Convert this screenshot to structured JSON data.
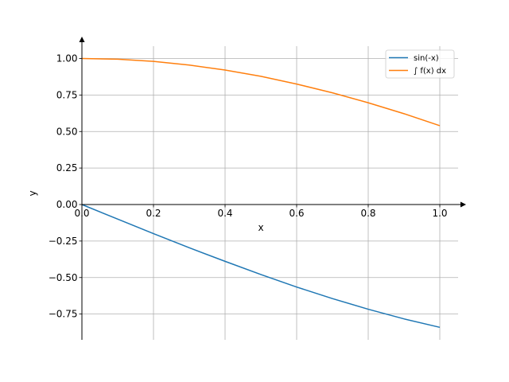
{
  "chart_data": {
    "type": "line",
    "title": "",
    "xlabel": "x",
    "ylabel": "y",
    "xlim": [
      0.0,
      1.05
    ],
    "ylim": [
      -0.93,
      1.09
    ],
    "xticks": [
      0.0,
      0.2,
      0.4,
      0.6,
      0.8,
      1.0
    ],
    "xtick_labels": [
      "0.0",
      "0.2",
      "0.4",
      "0.6",
      "0.8",
      "1.0"
    ],
    "yticks": [
      -0.75,
      -0.5,
      -0.25,
      0.0,
      0.25,
      0.5,
      0.75,
      1.0
    ],
    "ytick_labels": [
      "−0.75",
      "−0.50",
      "−0.25",
      "0.00",
      "0.25",
      "0.50",
      "0.75",
      "1.00"
    ],
    "grid": true,
    "legend_position": "top-right",
    "series": [
      {
        "name": "sin(-x)",
        "color": "#1f77b4",
        "x": [
          0.0,
          0.1,
          0.2,
          0.3,
          0.4,
          0.5,
          0.6,
          0.7,
          0.8,
          0.9,
          1.0
        ],
        "values": [
          0.0,
          -0.1,
          -0.199,
          -0.296,
          -0.389,
          -0.479,
          -0.565,
          -0.644,
          -0.717,
          -0.783,
          -0.841
        ]
      },
      {
        "name": "∫ f(x) dx",
        "color": "#ff7f0e",
        "x": [
          0.0,
          0.1,
          0.2,
          0.3,
          0.4,
          0.5,
          0.6,
          0.7,
          0.8,
          0.9,
          1.0
        ],
        "values": [
          1.0,
          0.995,
          0.98,
          0.955,
          0.921,
          0.878,
          0.825,
          0.765,
          0.697,
          0.622,
          0.54
        ]
      }
    ]
  }
}
